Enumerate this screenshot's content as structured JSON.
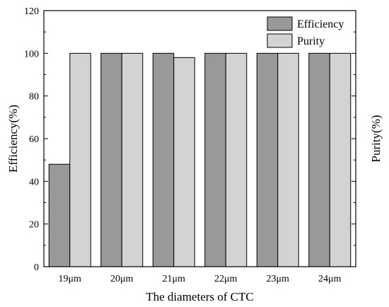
{
  "chart_data": {
    "type": "bar",
    "categories": [
      "19μm",
      "20μm",
      "21μm",
      "22μm",
      "23μm",
      "24μm"
    ],
    "series": [
      {
        "name": "Efficiency",
        "values": [
          48,
          100,
          100,
          100,
          100,
          100
        ],
        "color": "#999999"
      },
      {
        "name": "Purity",
        "values": [
          100,
          100,
          98,
          100,
          100,
          100
        ],
        "color": "#d3d3d3"
      }
    ],
    "xlabel": "The diameters of CTC",
    "ylabel": "Efficiency(%)",
    "ylabel_right": "Purity(%)",
    "ylim": [
      0,
      120
    ],
    "yticks": [
      0,
      20,
      40,
      60,
      80,
      100,
      120
    ],
    "grid": false,
    "legend_position": "top-right"
  }
}
